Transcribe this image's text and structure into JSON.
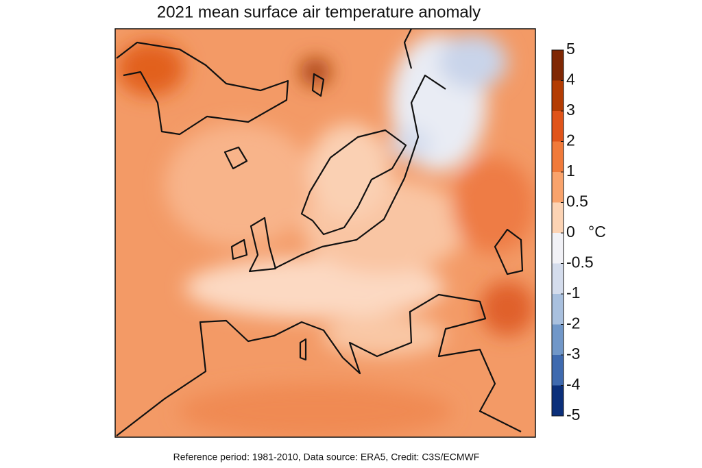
{
  "title": "2021 mean surface air temperature anomaly",
  "colorbar": {
    "ticks": [
      5,
      4,
      3,
      2,
      1,
      0.5,
      0,
      -0.5,
      -1,
      -2,
      -3,
      -4,
      -5
    ],
    "unit": "°C",
    "colors": [
      "#7f2704",
      "#b33c03",
      "#e0541a",
      "#f07a3a",
      "#f9a36c",
      "#fcd3b4",
      "#f1f1f6",
      "#d4dcec",
      "#a9c0de",
      "#7197c8",
      "#3f6aaf",
      "#0b2f7a"
    ]
  },
  "footer": "Reference period: 1981-2010, Data source: ERA5, Credit: C3S/ECMWF"
}
